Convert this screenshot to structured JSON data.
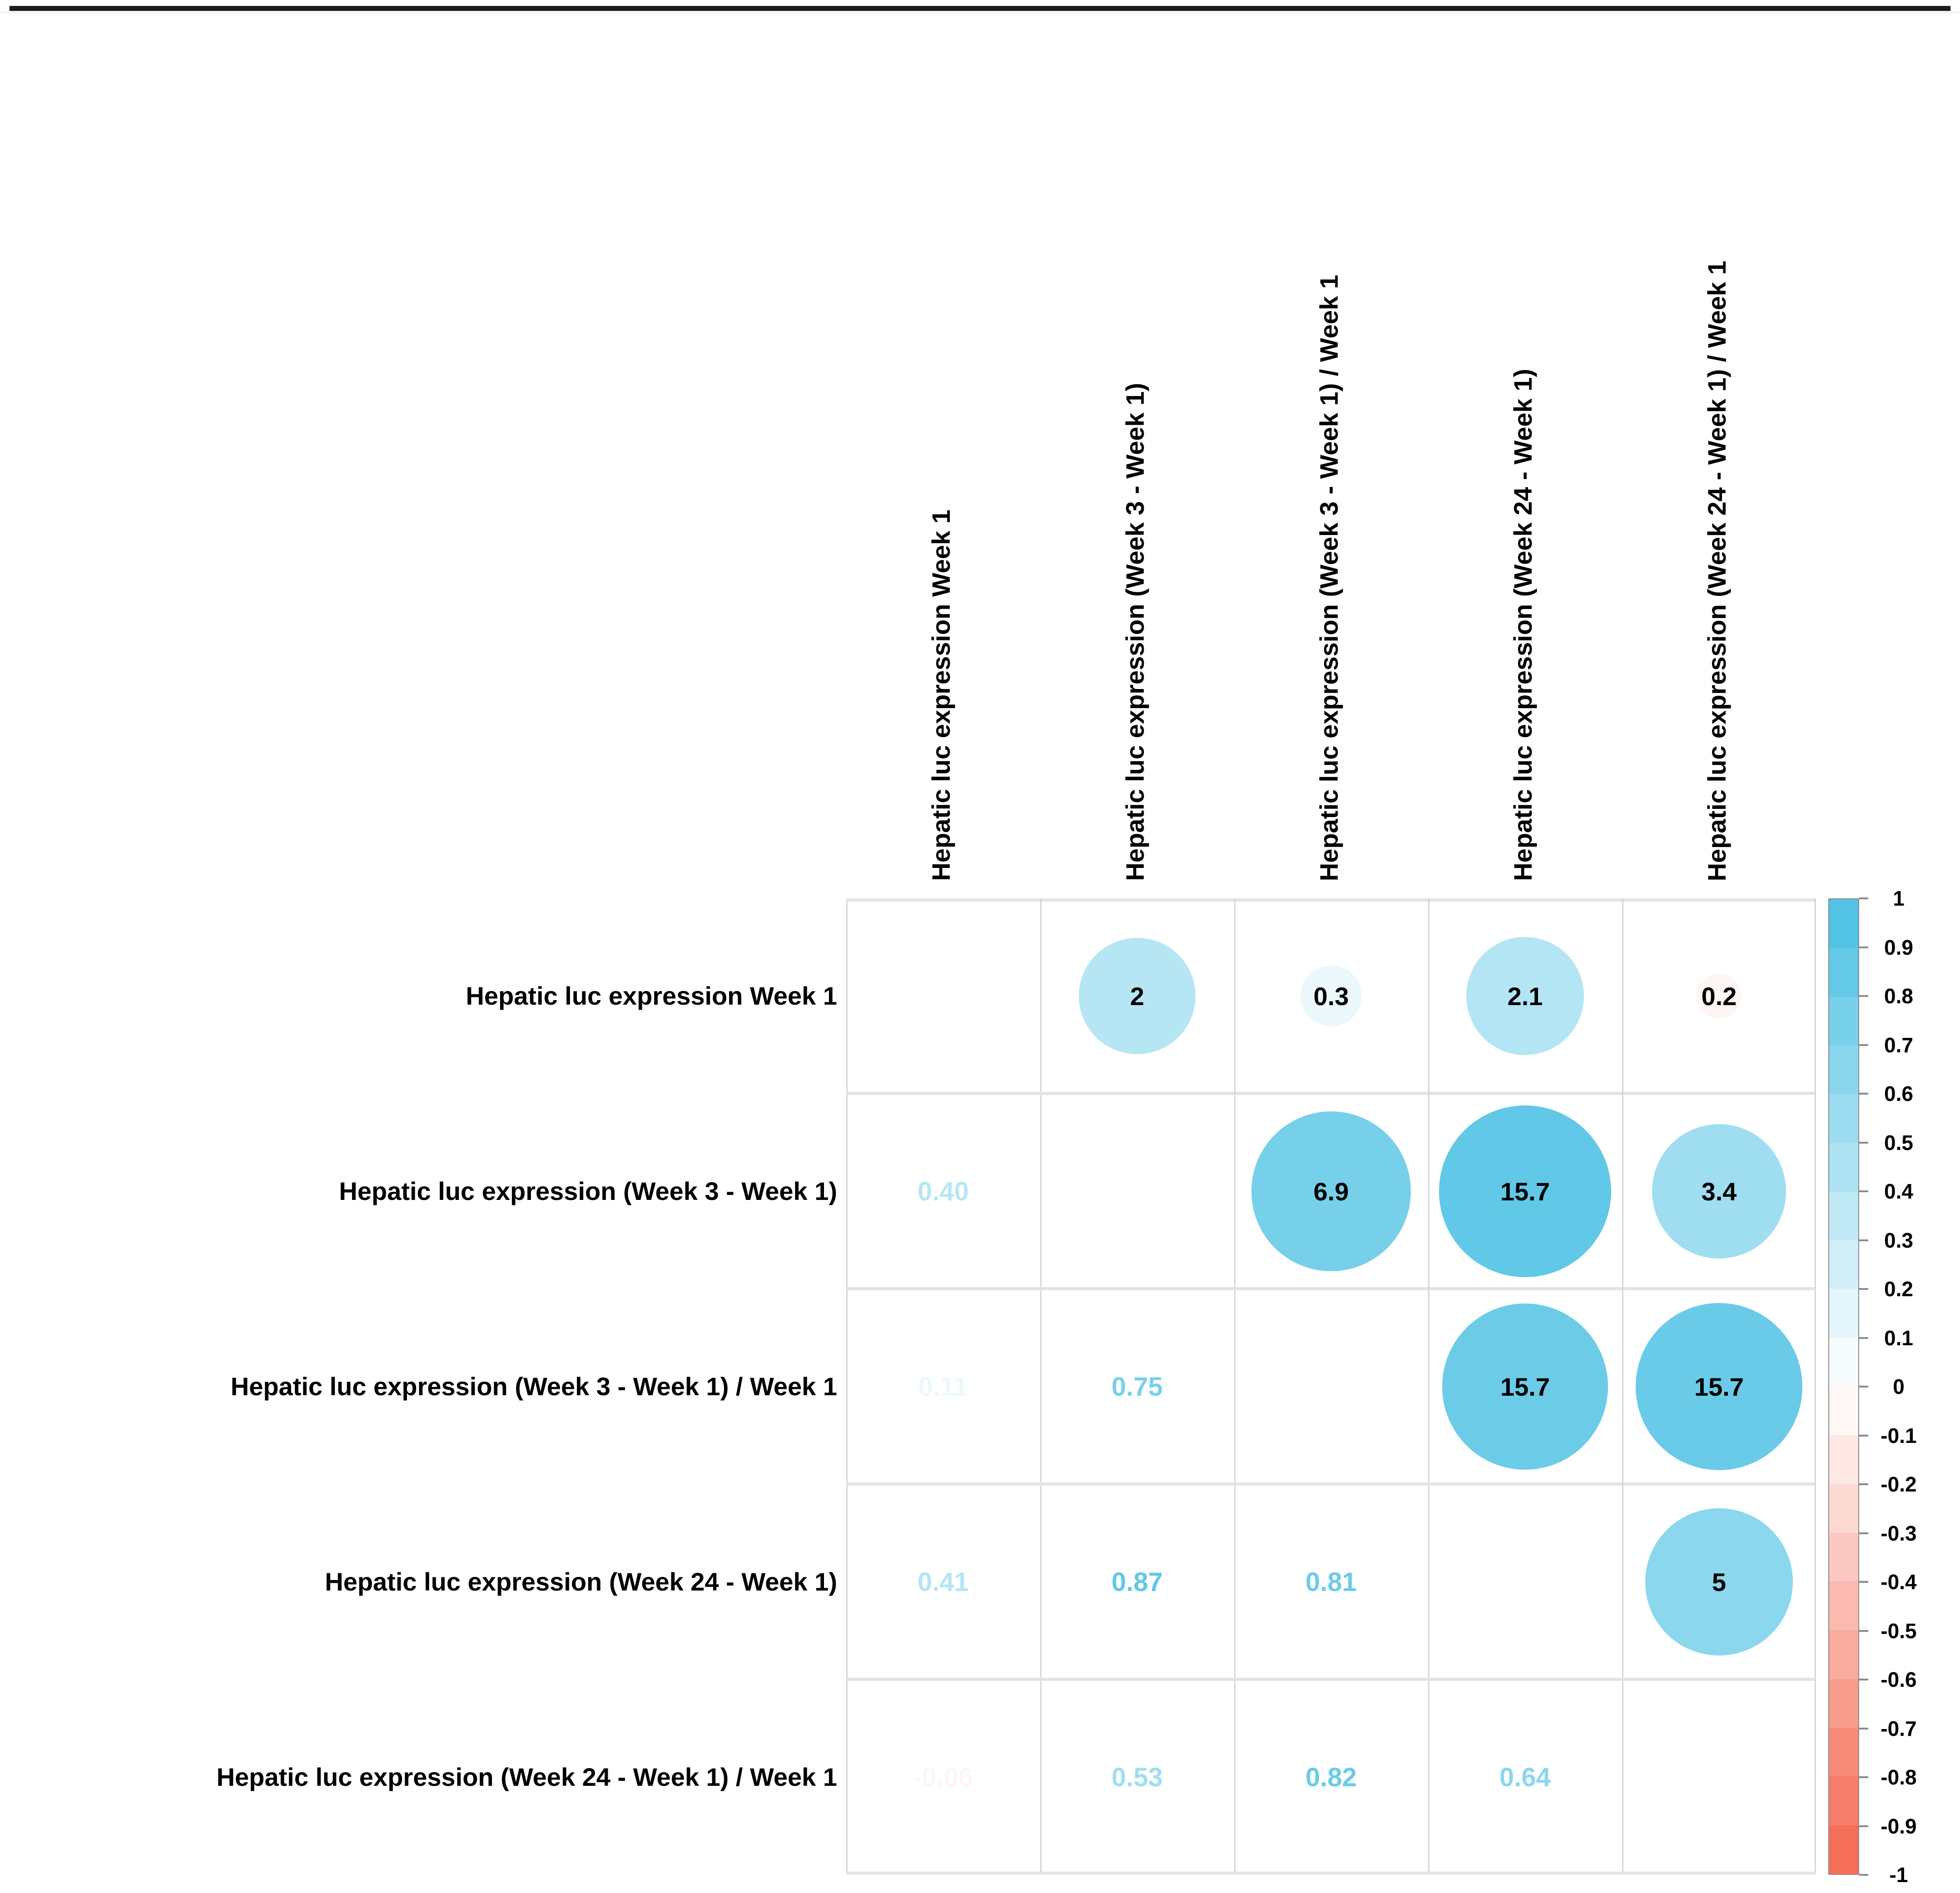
{
  "page": {
    "top_border_color": "#1b1b1b",
    "background": "#ffffff"
  },
  "chart_data": {
    "type": "heatmap",
    "subtype": "correlation-bubble-matrix",
    "title": "",
    "variables": [
      "Hepatic luc expression Week 1",
      "Hepatic luc expression (Week 3 - Week 1)",
      "Hepatic luc expression (Week 3 - Week 1) / Week 1",
      "Hepatic luc expression (Week 24 - Week 1)",
      "Hepatic luc expression (Week 24 - Week 1) / Week 1"
    ],
    "upper_triangle_bubbles": [
      {
        "row": 1,
        "col": 2,
        "label": "2",
        "color_value": 0.4
      },
      {
        "row": 1,
        "col": 3,
        "label": "0.3",
        "color_value": 0.11
      },
      {
        "row": 1,
        "col": 4,
        "label": "2.1",
        "color_value": 0.41
      },
      {
        "row": 1,
        "col": 5,
        "label": "0.2",
        "color_value": -0.06
      },
      {
        "row": 2,
        "col": 3,
        "label": "6.9",
        "color_value": 0.75
      },
      {
        "row": 2,
        "col": 4,
        "label": "15.7",
        "color_value": 0.87
      },
      {
        "row": 2,
        "col": 5,
        "label": "3.4",
        "color_value": 0.53
      },
      {
        "row": 3,
        "col": 4,
        "label": "15.7",
        "color_value": 0.81
      },
      {
        "row": 3,
        "col": 5,
        "label": "15.7",
        "color_value": 0.82
      },
      {
        "row": 4,
        "col": 5,
        "label": "5",
        "color_value": 0.64
      }
    ],
    "lower_triangle_coefficients": [
      {
        "row": 2,
        "col": 1,
        "label": "0.40",
        "value": 0.4
      },
      {
        "row": 3,
        "col": 1,
        "label": "0.11",
        "value": 0.11
      },
      {
        "row": 3,
        "col": 2,
        "label": "0.75",
        "value": 0.75
      },
      {
        "row": 4,
        "col": 1,
        "label": "0.41",
        "value": 0.41
      },
      {
        "row": 4,
        "col": 2,
        "label": "0.87",
        "value": 0.87
      },
      {
        "row": 4,
        "col": 3,
        "label": "0.81",
        "value": 0.81
      },
      {
        "row": 5,
        "col": 1,
        "label": "-0.06",
        "value": -0.06
      },
      {
        "row": 5,
        "col": 2,
        "label": "0.53",
        "value": 0.53
      },
      {
        "row": 5,
        "col": 3,
        "label": "0.82",
        "value": 0.82
      },
      {
        "row": 5,
        "col": 4,
        "label": "0.64",
        "value": 0.64
      }
    ],
    "legend": {
      "min": -1,
      "max": 1,
      "steps": 20,
      "positive_color": "#49c0e3",
      "neutral_color": "#ffffff",
      "negative_color": "#f4664e",
      "tick_labels": [
        "1",
        "0.9",
        "0.8",
        "0.7",
        "0.6",
        "0.5",
        "0.4",
        "0.3",
        "0.2",
        "0.1",
        "0",
        "-0.1",
        "-0.2",
        "-0.3",
        "-0.4",
        "-0.5",
        "-0.6",
        "-0.7",
        "-0.8",
        "-0.9",
        "-1"
      ]
    },
    "grid": true,
    "legend_position": "right"
  }
}
